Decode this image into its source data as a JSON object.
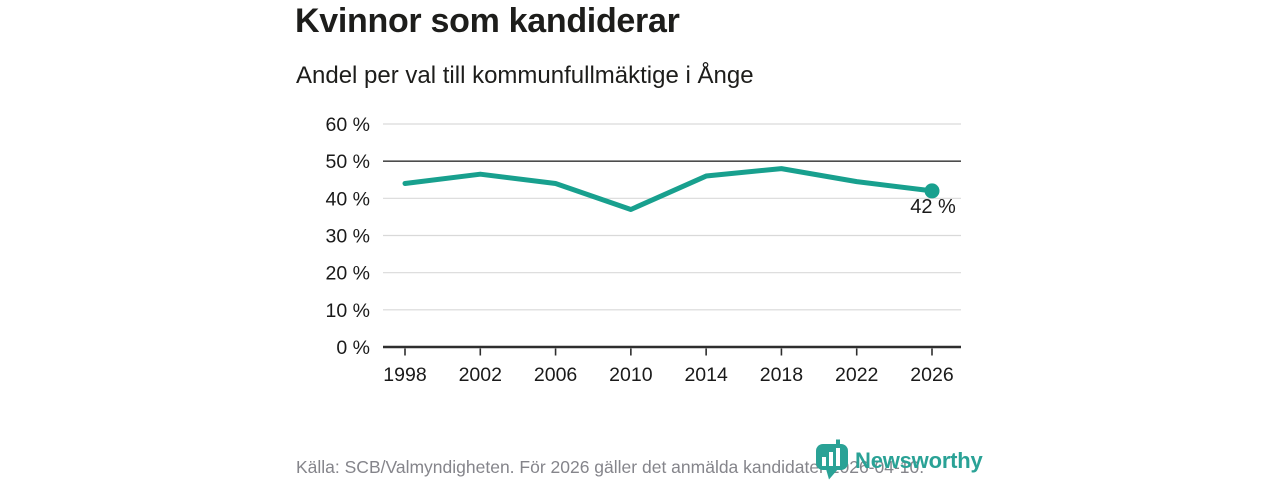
{
  "header": {
    "title": "Kvinnor som kandiderar",
    "subtitle": "Andel per val till kommunfullmäktige i Ånge"
  },
  "chart_data": {
    "type": "line",
    "title": "Kvinnor som kandiderar",
    "subtitle": "Andel per val till kommunfullmäktige i Ånge",
    "x": [
      "1998",
      "2002",
      "2006",
      "2010",
      "2014",
      "2018",
      "2022",
      "2026"
    ],
    "values": [
      44,
      46.5,
      44,
      37,
      46,
      48,
      44.5,
      42
    ],
    "xlabel": "",
    "ylabel": "",
    "ylim": [
      0,
      60
    ],
    "ytick_values": [
      0,
      10,
      20,
      30,
      40,
      50,
      60
    ],
    "ytick_labels": [
      "0 %",
      "10 %",
      "20 %",
      "30 %",
      "40 %",
      "50 %",
      "60 %"
    ],
    "highlight_gridline": 50,
    "endpoint_label": "42 %",
    "line_color": "#18a08e",
    "grid": true,
    "legend_position": "none"
  },
  "footer": {
    "source": "Källa: SCB/Valmyndigheten. För 2026 gäller det anmälda kandidater 2026-04-10.",
    "logo_text": "Newsworthy",
    "logo_color": "#2aa296"
  }
}
